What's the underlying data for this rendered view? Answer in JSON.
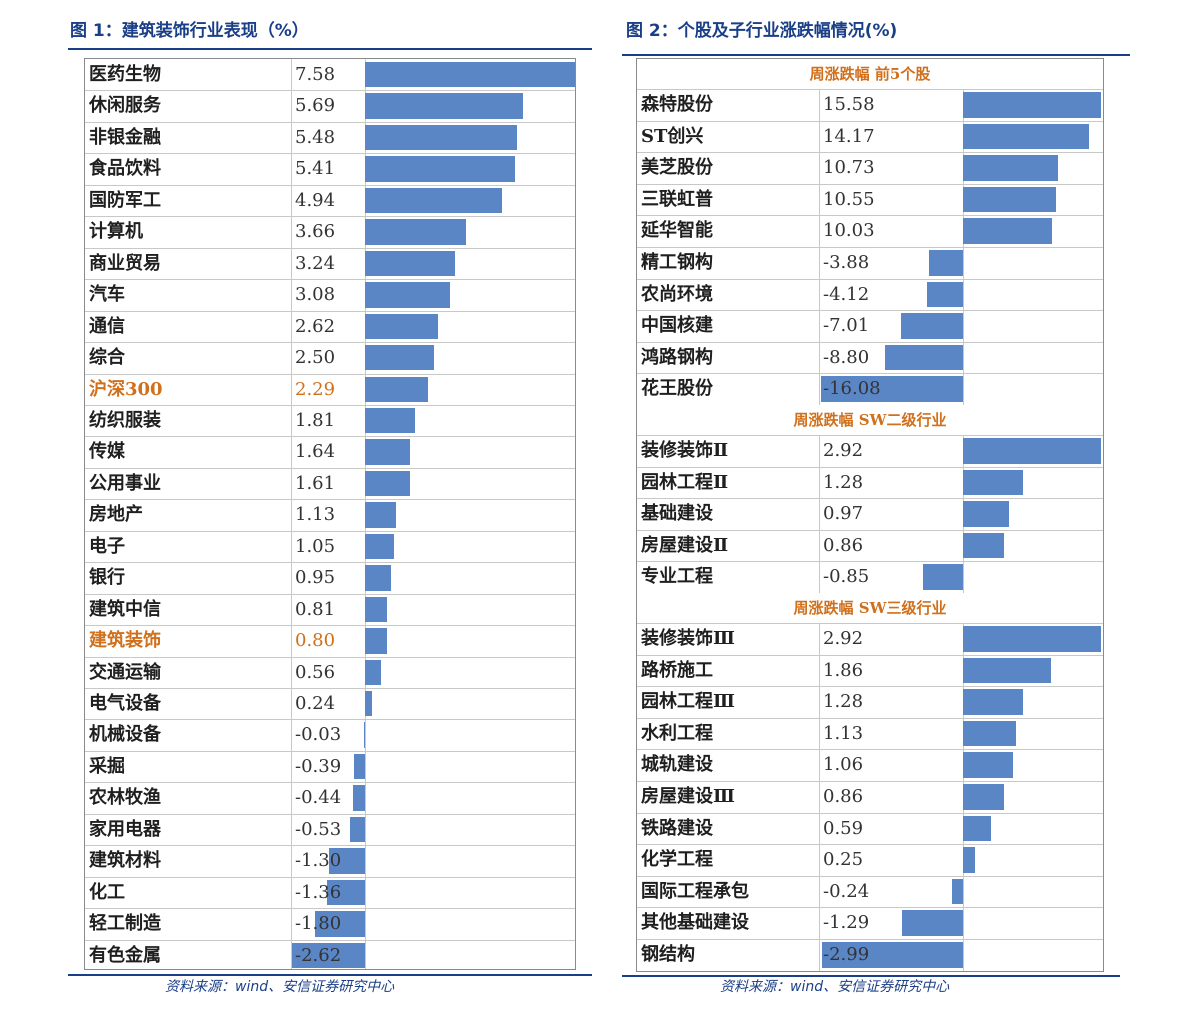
{
  "figure1": {
    "title": "图 1：建筑装饰行业表现（%）",
    "source": "资料来源：wind、安信证券研究中心",
    "highlight_color": "#d0701c",
    "bar_color": "#5b86c6",
    "highlight_rows": [
      "沪深300",
      "建筑装饰"
    ]
  },
  "figure2": {
    "title": "图 2：个股及子行业涨跌幅情况(%)",
    "source": "资料来源：wind、安信证券研究中心"
  },
  "chart_data": [
    {
      "type": "bar",
      "orientation": "horizontal",
      "title": "图 1：建筑装饰行业表现（%）",
      "categories": [
        "医药生物",
        "休闲服务",
        "非银金融",
        "食品饮料",
        "国防军工",
        "计算机",
        "商业贸易",
        "汽车",
        "通信",
        "综合",
        "沪深300",
        "纺织服装",
        "传媒",
        "公用事业",
        "房地产",
        "电子",
        "银行",
        "建筑中信",
        "建筑装饰",
        "交通运输",
        "电气设备",
        "机械设备",
        "采掘",
        "农林牧渔",
        "家用电器",
        "建筑材料",
        "化工",
        "轻工制造",
        "有色金属"
      ],
      "values": [
        "7.58",
        "5.69",
        "5.48",
        "5.41",
        "4.94",
        "3.66",
        "3.24",
        "3.08",
        "2.62",
        "2.50",
        "2.29",
        "1.81",
        "1.64",
        "1.61",
        "1.13",
        "1.05",
        "0.95",
        "0.81",
        "0.80",
        "0.56",
        "0.24",
        "-0.03",
        "-0.39",
        "-0.44",
        "-0.53",
        "-1.30",
        "-1.36",
        "-1.80",
        "-2.62"
      ]
    },
    {
      "type": "bar",
      "orientation": "horizontal",
      "title": "周涨跌幅  前5个股",
      "categories": [
        "森特股份",
        "ST创兴",
        "美芝股份",
        "三联虹普",
        "延华智能",
        "精工钢构",
        "农尚环境",
        "中国核建",
        "鸿路钢构",
        "花王股份"
      ],
      "values": [
        "15.58",
        "14.17",
        "10.73",
        "10.55",
        "10.03",
        "-3.88",
        "-4.12",
        "-7.01",
        "-8.80",
        "-16.08"
      ]
    },
    {
      "type": "bar",
      "orientation": "horizontal",
      "title": "周涨跌幅  SW二级行业",
      "categories": [
        "装修装饰Ⅱ",
        "园林工程Ⅱ",
        "基础建设",
        "房屋建设Ⅱ",
        "专业工程"
      ],
      "values": [
        "2.92",
        "1.28",
        "0.97",
        "0.86",
        "-0.85"
      ]
    },
    {
      "type": "bar",
      "orientation": "horizontal",
      "title": "周涨跌幅  SW三级行业",
      "categories": [
        "装修装饰Ⅲ",
        "路桥施工",
        "园林工程Ⅲ",
        "水利工程",
        "城轨建设",
        "房屋建设Ⅲ",
        "铁路建设",
        "化学工程",
        "国际工程承包",
        "其他基础建设",
        "钢结构"
      ],
      "values": [
        "2.92",
        "1.86",
        "1.28",
        "1.13",
        "1.06",
        "0.86",
        "0.59",
        "0.25",
        "-0.24",
        "-1.29",
        "-2.99"
      ]
    }
  ]
}
